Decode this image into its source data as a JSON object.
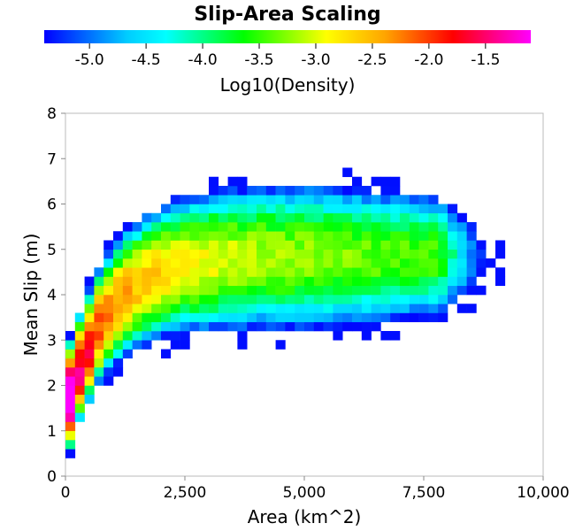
{
  "chart_data": {
    "type": "heatmap",
    "title": "Slip-Area Scaling",
    "xlabel": "Area (km^2)",
    "ylabel": "Mean Slip (m)",
    "colorbar": {
      "label": "Log10(Density)",
      "range": [
        -5.4,
        -1.1
      ],
      "ticks": [
        "-5.0",
        "-4.5",
        "-4.0",
        "-3.5",
        "-3.0",
        "-2.5",
        "-2.0",
        "-1.5"
      ],
      "tick_values": [
        -5.0,
        -4.5,
        -4.0,
        -3.5,
        -3.0,
        -2.5,
        -2.0,
        -1.5
      ],
      "placement": "top"
    },
    "xlim": [
      0,
      10000
    ],
    "ylim": [
      0,
      8
    ],
    "xticks": [
      "0",
      "2,500",
      "5,000",
      "7,500",
      "10,000"
    ],
    "xtick_values": [
      0,
      2500,
      5000,
      7500,
      10000
    ],
    "yticks": [
      "0",
      "1",
      "2",
      "3",
      "4",
      "5",
      "6",
      "7",
      "8"
    ],
    "ytick_values": [
      0,
      1,
      2,
      3,
      4,
      5,
      6,
      7,
      8
    ],
    "bin_width_x": 200,
    "bin_width_y": 0.2,
    "grid": false,
    "colors": [
      "#0000ff",
      "#00b0ff",
      "#00ffff",
      "#00ff00",
      "#ffff00",
      "#ff8c00",
      "#ff0000",
      "#ff00ff"
    ]
  }
}
